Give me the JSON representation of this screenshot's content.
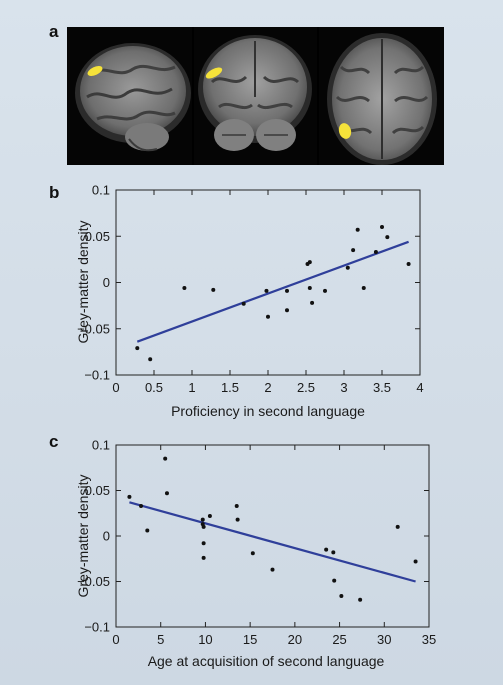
{
  "figure": {
    "panel_a": {
      "letter": "a"
    },
    "panel_b": {
      "letter": "b"
    },
    "panel_c": {
      "letter": "c"
    }
  },
  "colors": {
    "fit_line": "#2f3f9a",
    "activation": "#f5e23a",
    "point": "#111111"
  },
  "chart_data": [
    {
      "type": "scatter",
      "id": "b",
      "xlabel": "Proficiency in second language",
      "ylabel": "Grey-matter density",
      "xlim": [
        0,
        4
      ],
      "ylim": [
        -0.1,
        0.1
      ],
      "xticks": [
        "0",
        "0.5",
        "1",
        "1.5",
        "2",
        "2.5",
        "3",
        "3.5",
        "4"
      ],
      "yticks": [
        "0.1",
        "0.05",
        "0",
        "−0.05",
        "−0.1"
      ],
      "grid": false,
      "points": [
        [
          0.28,
          -0.071
        ],
        [
          0.45,
          -0.083
        ],
        [
          0.9,
          -0.006
        ],
        [
          1.28,
          -0.008
        ],
        [
          1.68,
          -0.023
        ],
        [
          1.98,
          -0.009
        ],
        [
          2.0,
          -0.037
        ],
        [
          2.25,
          -0.009
        ],
        [
          2.25,
          -0.03
        ],
        [
          2.52,
          0.02
        ],
        [
          2.55,
          0.022
        ],
        [
          2.55,
          -0.006
        ],
        [
          2.58,
          -0.022
        ],
        [
          2.75,
          -0.009
        ],
        [
          3.05,
          0.016
        ],
        [
          3.12,
          0.035
        ],
        [
          3.18,
          0.057
        ],
        [
          3.26,
          -0.006
        ],
        [
          3.42,
          0.033
        ],
        [
          3.5,
          0.06
        ],
        [
          3.57,
          0.049
        ],
        [
          3.85,
          0.02
        ]
      ],
      "fit": [
        [
          0.28,
          -0.064
        ],
        [
          3.85,
          0.044
        ]
      ]
    },
    {
      "type": "scatter",
      "id": "c",
      "xlabel": "Age at acquisition of second language",
      "ylabel": "Grey-matter density",
      "xlim": [
        0,
        35
      ],
      "ylim": [
        -0.1,
        0.1
      ],
      "xticks": [
        "0",
        "5",
        "10",
        "15",
        "20",
        "25",
        "30",
        "35"
      ],
      "yticks": [
        "0.1",
        "0.05",
        "0",
        "−0.05",
        "−0.1"
      ],
      "grid": false,
      "points": [
        [
          1.5,
          0.043
        ],
        [
          2.8,
          0.033
        ],
        [
          3.5,
          0.006
        ],
        [
          5.5,
          0.085
        ],
        [
          5.7,
          0.047
        ],
        [
          9.7,
          0.018
        ],
        [
          9.7,
          0.013
        ],
        [
          9.8,
          0.01
        ],
        [
          9.8,
          -0.008
        ],
        [
          9.8,
          -0.024
        ],
        [
          10.5,
          0.022
        ],
        [
          13.5,
          0.033
        ],
        [
          13.6,
          0.018
        ],
        [
          15.3,
          -0.019
        ],
        [
          17.5,
          -0.037
        ],
        [
          23.5,
          -0.015
        ],
        [
          24.3,
          -0.018
        ],
        [
          24.4,
          -0.049
        ],
        [
          25.2,
          -0.066
        ],
        [
          27.3,
          -0.07
        ],
        [
          31.5,
          0.01
        ],
        [
          33.5,
          -0.028
        ]
      ],
      "fit": [
        [
          1.5,
          0.037
        ],
        [
          33.5,
          -0.05
        ]
      ]
    }
  ]
}
